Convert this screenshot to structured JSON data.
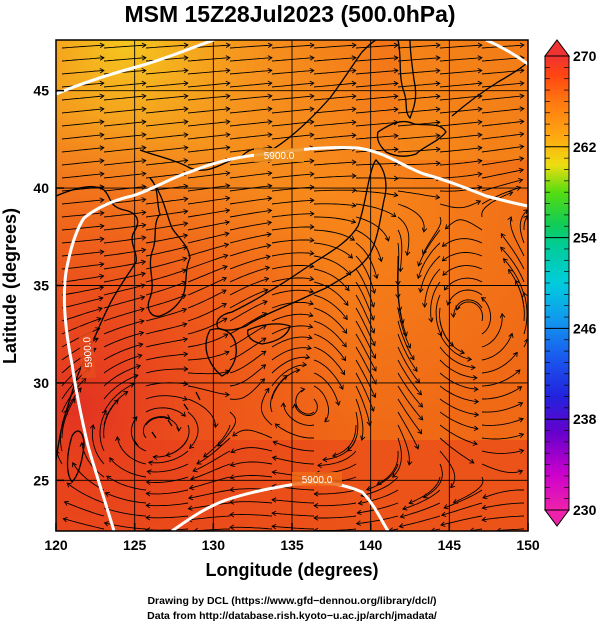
{
  "title": "MSM 15Z28Jul2023 (500.0hPa)",
  "x_axis": {
    "label": "Longitude (degrees)",
    "ticks": [
      "120",
      "125",
      "130",
      "135",
      "140",
      "145",
      "150"
    ],
    "range": [
      120,
      150
    ]
  },
  "y_axis": {
    "label": "Latitude  (degrees)",
    "ticks": [
      "25",
      "30",
      "35",
      "40",
      "45"
    ],
    "range": [
      22.4,
      47.6
    ]
  },
  "colorbar": {
    "ticks": [
      "270",
      "262",
      "254",
      "246",
      "238",
      "230"
    ],
    "range": [
      230,
      270
    ],
    "colors": [
      "#ee22aa",
      "#cc00cc",
      "#6600cc",
      "#2222dd",
      "#1a55ee",
      "#1199ee",
      "#00ccdd",
      "#00cc99",
      "#11cc55",
      "#55dd11",
      "#aadd11",
      "#eedd11",
      "#ffaa11",
      "#ff7711",
      "#ff4411",
      "#ee3333"
    ]
  },
  "contours": [
    {
      "label": "5900.0"
    },
    {
      "label": "5900.0"
    },
    {
      "label": "5900.0"
    }
  ],
  "credits": {
    "line1": "Drawing by DCL (https://www.gfd−dennou.org/library/dcl/)",
    "line2": "Data from http://database.rish.kyoto−u.ac.jp/arch/jmadata/"
  }
}
